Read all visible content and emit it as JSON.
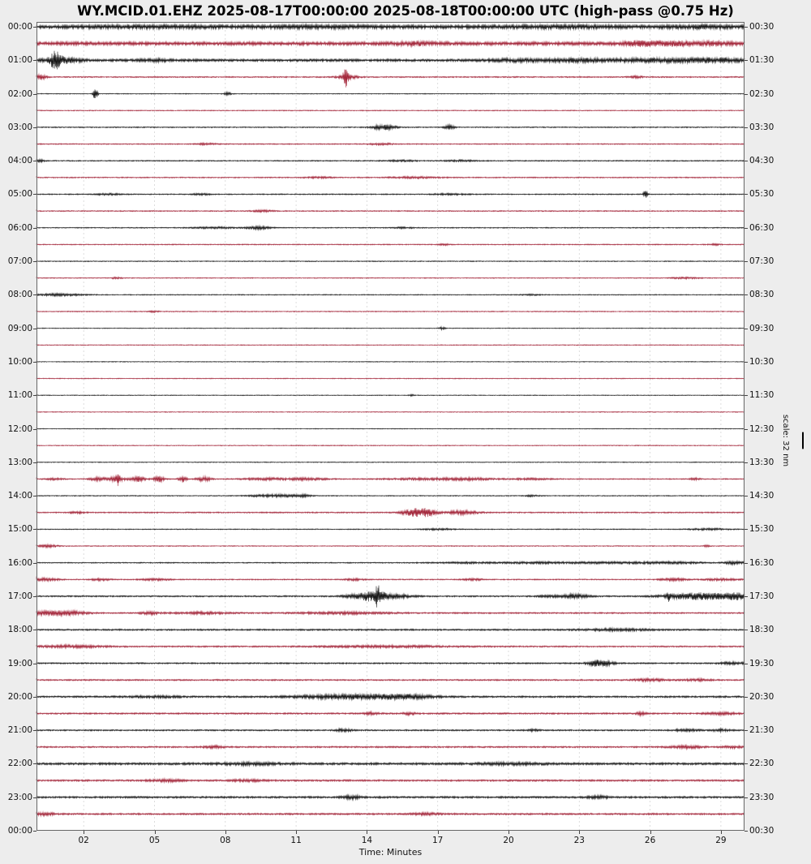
{
  "title": "WY.MCID.01.EHZ 2025-08-17T00:00:00 2025-08-18T00:00:00 UTC (high-pass @0.75 Hz)",
  "x_axis": {
    "label": "Time: Minutes",
    "tick_labels": [
      "02",
      "05",
      "08",
      "11",
      "14",
      "17",
      "20",
      "23",
      "26",
      "29"
    ],
    "tick_minutes": [
      2,
      5,
      8,
      11,
      14,
      17,
      20,
      23,
      26,
      29
    ],
    "range_minutes": [
      0,
      30
    ],
    "grid": "dashed-vertical"
  },
  "y_axis": {
    "left_labels": [
      "00:00",
      "01:00",
      "02:00",
      "03:00",
      "04:00",
      "05:00",
      "06:00",
      "07:00",
      "08:00",
      "09:00",
      "10:00",
      "11:00",
      "12:00",
      "13:00",
      "14:00",
      "15:00",
      "16:00",
      "17:00",
      "18:00",
      "19:00",
      "20:00",
      "21:00",
      "22:00",
      "23:00",
      "00:00"
    ],
    "right_labels": [
      "00:30",
      "01:30",
      "02:30",
      "03:30",
      "04:30",
      "05:30",
      "06:30",
      "07:30",
      "08:30",
      "09:30",
      "10:30",
      "11:30",
      "12:30",
      "13:30",
      "14:30",
      "15:30",
      "16:30",
      "17:30",
      "18:30",
      "19:30",
      "20:30",
      "21:30",
      "22:30",
      "23:30",
      "00:30"
    ]
  },
  "scale": {
    "label": "scale: 32 nm",
    "nm": 32
  },
  "colors": {
    "trace_black": "#161616",
    "trace_red": "#a32539",
    "background": "#ededed",
    "plot_background": "#ffffff",
    "grid": "#d4d4d4",
    "border": "#666666",
    "tick": "#444444"
  },
  "chart_data": {
    "type": "line",
    "subtype": "helicorder-dayplot",
    "station": "WY.MCID.01.EHZ",
    "time_start": "2025-08-17T00:00:00 UTC",
    "time_end": "2025-08-18T00:00:00 UTC",
    "filter": "high-pass @0.75 Hz",
    "minutes_per_line": 30,
    "lines": 48,
    "amplitude_scale_nm": 32,
    "legend_position": "none",
    "rows": [
      {
        "t": "00:00",
        "k": "b",
        "n": 2.2,
        "e": [
          [
            5,
            0.8,
            2
          ],
          [
            12,
            0.8,
            2
          ],
          [
            22,
            1,
            2
          ],
          [
            28,
            1.2,
            1
          ]
        ]
      },
      {
        "t": "00:30",
        "k": "r",
        "n": 2.2,
        "e": [
          [
            16,
            1.5,
            0.5
          ],
          [
            25.5,
            2.2,
            0.4
          ],
          [
            26.8,
            2,
            0.6
          ],
          [
            28.5,
            1.2,
            0.8
          ]
        ]
      },
      {
        "t": "01:00",
        "k": "b",
        "n": 1.6,
        "e": [
          [
            0.8,
            9,
            0.15
          ],
          [
            1.1,
            3,
            0.5
          ],
          [
            5,
            1,
            0.5
          ],
          [
            20.5,
            1.2,
            1
          ],
          [
            23,
            1.5,
            0.8
          ],
          [
            26.5,
            1.8,
            1.5
          ],
          [
            29,
            1.8,
            0.8
          ]
        ]
      },
      {
        "t": "01:30",
        "k": "r",
        "n": 0.8,
        "e": [
          [
            0.15,
            2.5,
            0.2
          ],
          [
            13.1,
            11,
            0.07
          ],
          [
            13.2,
            2.5,
            0.3
          ],
          [
            25.4,
            1.2,
            0.2
          ]
        ]
      },
      {
        "t": "02:00",
        "k": "b",
        "n": 0.55,
        "e": [
          [
            2.5,
            8,
            0.07
          ],
          [
            8.1,
            2.2,
            0.1
          ]
        ]
      },
      {
        "t": "02:30",
        "k": "r",
        "n": 0.6,
        "e": []
      },
      {
        "t": "03:00",
        "k": "b",
        "n": 0.7,
        "e": [
          [
            14.7,
            3,
            0.35
          ],
          [
            17.5,
            2.5,
            0.15
          ]
        ]
      },
      {
        "t": "03:30",
        "k": "r",
        "n": 0.7,
        "e": [
          [
            7.2,
            0.9,
            0.3
          ],
          [
            14.6,
            0.9,
            0.4
          ]
        ]
      },
      {
        "t": "04:00",
        "k": "b",
        "n": 0.7,
        "e": [
          [
            0.1,
            1.8,
            0.15
          ],
          [
            15.5,
            0.8,
            0.5
          ],
          [
            18,
            0.8,
            0.5
          ]
        ]
      },
      {
        "t": "04:30",
        "k": "r",
        "n": 0.7,
        "e": [
          [
            12,
            0.8,
            0.4
          ],
          [
            16,
            0.9,
            0.8
          ]
        ]
      },
      {
        "t": "05:00",
        "k": "b",
        "n": 0.7,
        "e": [
          [
            3,
            0.9,
            0.4
          ],
          [
            7,
            0.8,
            0.3
          ],
          [
            17.5,
            0.9,
            0.5
          ],
          [
            25.8,
            4.5,
            0.06
          ]
        ]
      },
      {
        "t": "05:30",
        "k": "r",
        "n": 0.7,
        "e": [
          [
            9.6,
            1.1,
            0.3
          ]
        ]
      },
      {
        "t": "06:00",
        "k": "b",
        "n": 0.65,
        "e": [
          [
            7.5,
            1,
            0.6
          ],
          [
            9.4,
            1.8,
            0.35
          ],
          [
            15.6,
            0.8,
            0.3
          ]
        ]
      },
      {
        "t": "06:30",
        "k": "r",
        "n": 0.65,
        "e": [
          [
            17.3,
            0.8,
            0.2
          ],
          [
            28.7,
            0.8,
            0.2
          ]
        ]
      },
      {
        "t": "07:00",
        "k": "b",
        "n": 0.6,
        "e": []
      },
      {
        "t": "07:30",
        "k": "r",
        "n": 0.6,
        "e": [
          [
            3.4,
            1,
            0.15
          ],
          [
            27.5,
            0.9,
            0.4
          ]
        ]
      },
      {
        "t": "08:00",
        "k": "b",
        "n": 0.6,
        "e": [
          [
            0.9,
            1.3,
            0.7
          ],
          [
            21,
            0.7,
            0.3
          ]
        ]
      },
      {
        "t": "08:30",
        "k": "r",
        "n": 0.6,
        "e": [
          [
            5,
            0.9,
            0.15
          ]
        ]
      },
      {
        "t": "09:00",
        "k": "b",
        "n": 0.5,
        "e": [
          [
            17.2,
            1.8,
            0.08
          ]
        ]
      },
      {
        "t": "09:30",
        "k": "r",
        "n": 0.55,
        "e": []
      },
      {
        "t": "10:00",
        "k": "b",
        "n": 0.5,
        "e": []
      },
      {
        "t": "10:30",
        "k": "r",
        "n": 0.55,
        "e": []
      },
      {
        "t": "11:00",
        "k": "b",
        "n": 0.5,
        "e": [
          [
            15.9,
            0.9,
            0.1
          ]
        ]
      },
      {
        "t": "11:30",
        "k": "r",
        "n": 0.55,
        "e": []
      },
      {
        "t": "12:00",
        "k": "b",
        "n": 0.5,
        "e": []
      },
      {
        "t": "12:30",
        "k": "r",
        "n": 0.55,
        "e": []
      },
      {
        "t": "13:00",
        "k": "b",
        "n": 0.55,
        "e": []
      },
      {
        "t": "13:30",
        "k": "r",
        "n": 0.7,
        "e": [
          [
            0.7,
            1,
            0.3
          ],
          [
            2.6,
            2,
            0.25
          ],
          [
            3.4,
            4,
            0.2
          ],
          [
            3.45,
            7,
            0.04
          ],
          [
            4.3,
            3,
            0.25
          ],
          [
            5.2,
            3.5,
            0.15
          ],
          [
            6.2,
            3.5,
            0.12
          ],
          [
            7.1,
            3,
            0.2
          ],
          [
            9.8,
            1.2,
            0.8
          ],
          [
            11.5,
            1.2,
            0.6
          ],
          [
            16.5,
            1.1,
            1.2
          ],
          [
            18.5,
            1,
            0.8
          ],
          [
            21,
            0.9,
            0.6
          ],
          [
            27.9,
            1.2,
            0.15
          ]
        ]
      },
      {
        "t": "14:00",
        "k": "b",
        "n": 0.6,
        "e": [
          [
            9.4,
            0.9,
            0.4
          ],
          [
            10.4,
            1.6,
            0.5
          ],
          [
            11.3,
            1.4,
            0.25
          ],
          [
            21,
            0.8,
            0.2
          ]
        ]
      },
      {
        "t": "14:30",
        "k": "r",
        "n": 0.8,
        "e": [
          [
            1.7,
            1.2,
            0.2
          ],
          [
            16,
            4.5,
            0.35
          ],
          [
            16.6,
            3.5,
            0.25
          ],
          [
            18,
            2.2,
            0.5
          ]
        ]
      },
      {
        "t": "15:00",
        "k": "b",
        "n": 0.6,
        "e": [
          [
            17,
            0.9,
            0.5
          ],
          [
            28.5,
            1,
            0.6
          ]
        ]
      },
      {
        "t": "15:30",
        "k": "r",
        "n": 0.6,
        "e": [
          [
            0.5,
            1.5,
            0.3
          ],
          [
            28.4,
            1.2,
            0.1
          ]
        ]
      },
      {
        "t": "16:00",
        "k": "b",
        "n": 0.7,
        "e": [
          [
            18,
            0.9,
            1
          ],
          [
            21,
            0.9,
            1
          ],
          [
            24,
            1,
            1.5
          ],
          [
            27,
            1,
            1
          ],
          [
            29.6,
            1.8,
            0.3
          ]
        ]
      },
      {
        "t": "16:30",
        "k": "r",
        "n": 0.7,
        "e": [
          [
            0.4,
            1.6,
            0.4
          ],
          [
            2.7,
            1.2,
            0.3
          ],
          [
            5,
            1,
            0.5
          ],
          [
            13.5,
            1.1,
            0.3
          ],
          [
            18.5,
            1,
            0.3
          ],
          [
            27,
            1.5,
            0.4
          ],
          [
            29,
            1.3,
            0.5
          ]
        ]
      },
      {
        "t": "17:00",
        "k": "b",
        "n": 0.9,
        "e": [
          [
            13.8,
            3,
            0.5
          ],
          [
            14.4,
            6,
            0.3
          ],
          [
            14.45,
            12,
            0.04
          ],
          [
            15.3,
            2,
            0.5
          ],
          [
            22.3,
            1.5,
            0.6
          ],
          [
            23,
            1.3,
            0.4
          ],
          [
            26.8,
            4.5,
            0.05
          ],
          [
            27.5,
            2.5,
            0.8
          ],
          [
            28.7,
            2.8,
            0.8
          ],
          [
            29.7,
            3,
            0.3
          ]
        ]
      },
      {
        "t": "17:30",
        "k": "r",
        "n": 0.9,
        "e": [
          [
            0.5,
            2.2,
            0.6
          ],
          [
            1.5,
            1.8,
            0.5
          ],
          [
            4.8,
            1.5,
            0.3
          ],
          [
            7,
            1.2,
            0.8
          ],
          [
            13,
            1.2,
            1.5
          ]
        ]
      },
      {
        "t": "18:00",
        "k": "b",
        "n": 1.0,
        "e": [
          [
            24.5,
            1.2,
            1
          ]
        ]
      },
      {
        "t": "18:30",
        "k": "r",
        "n": 0.9,
        "e": [
          [
            1.5,
            1.4,
            1
          ],
          [
            15,
            1.1,
            2
          ]
        ]
      },
      {
        "t": "19:00",
        "k": "b",
        "n": 0.9,
        "e": [
          [
            23.7,
            3.2,
            0.25
          ],
          [
            24.2,
            1.8,
            0.3
          ],
          [
            29.5,
            1.4,
            0.4
          ]
        ]
      },
      {
        "t": "19:30",
        "k": "r",
        "n": 0.9,
        "e": [
          [
            26,
            1.4,
            0.5
          ],
          [
            28,
            1.2,
            0.4
          ]
        ]
      },
      {
        "t": "20:00",
        "k": "b",
        "n": 1.1,
        "e": [
          [
            5,
            1,
            0.8
          ],
          [
            12.5,
            1.8,
            1.2
          ],
          [
            14.5,
            2,
            1
          ],
          [
            16,
            1.6,
            0.8
          ]
        ]
      },
      {
        "t": "20:30",
        "k": "r",
        "n": 1.0,
        "e": [
          [
            14.2,
            1.6,
            0.2
          ],
          [
            15.8,
            1.4,
            0.2
          ],
          [
            25.6,
            1.8,
            0.15
          ],
          [
            29,
            1.2,
            0.5
          ]
        ]
      },
      {
        "t": "21:00",
        "k": "b",
        "n": 0.9,
        "e": [
          [
            13,
            1.5,
            0.3
          ],
          [
            21,
            1.1,
            0.2
          ],
          [
            27.5,
            1.2,
            0.4
          ],
          [
            29,
            1.3,
            0.3
          ]
        ]
      },
      {
        "t": "21:30",
        "k": "r",
        "n": 1.0,
        "e": [
          [
            7.5,
            1.3,
            0.3
          ],
          [
            27.5,
            1.5,
            0.5
          ],
          [
            29.5,
            1.3,
            0.3
          ]
        ]
      },
      {
        "t": "22:00",
        "k": "b",
        "n": 1.4,
        "e": [
          [
            9,
            1.2,
            1
          ],
          [
            20,
            1.1,
            1
          ]
        ]
      },
      {
        "t": "22:30",
        "k": "r",
        "n": 1.1,
        "e": [
          [
            5.5,
            1.3,
            0.5
          ],
          [
            9,
            1.2,
            0.5
          ]
        ]
      },
      {
        "t": "23:00",
        "k": "b",
        "n": 1.2,
        "e": [
          [
            13.4,
            1.8,
            0.3
          ],
          [
            23.8,
            1.5,
            0.3
          ]
        ]
      },
      {
        "t": "23:30",
        "k": "r",
        "n": 1.1,
        "e": [
          [
            0.3,
            1.5,
            0.3
          ],
          [
            16.5,
            1.2,
            0.4
          ]
        ]
      }
    ]
  }
}
